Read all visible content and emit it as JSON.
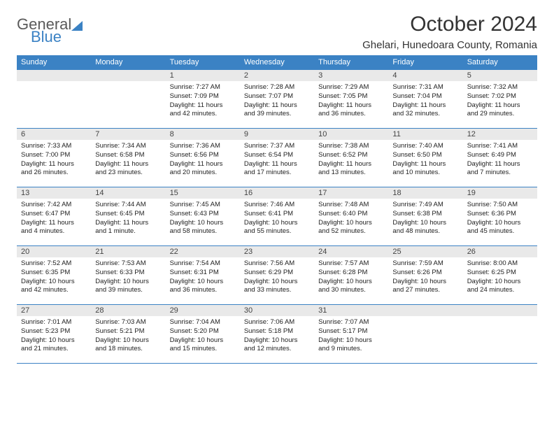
{
  "brand": {
    "part1": "General",
    "part2": "Blue"
  },
  "title": "October 2024",
  "location": "Ghelari, Hunedoara County, Romania",
  "header_bg": "#3b82c4",
  "header_fg": "#ffffff",
  "daynum_bg": "#e9e9e9",
  "border_color": "#3b82c4",
  "weekdays": [
    "Sunday",
    "Monday",
    "Tuesday",
    "Wednesday",
    "Thursday",
    "Friday",
    "Saturday"
  ],
  "weeks": [
    [
      null,
      null,
      {
        "n": "1",
        "sr": "Sunrise: 7:27 AM",
        "ss": "Sunset: 7:09 PM",
        "dl": "Daylight: 11 hours and 42 minutes."
      },
      {
        "n": "2",
        "sr": "Sunrise: 7:28 AM",
        "ss": "Sunset: 7:07 PM",
        "dl": "Daylight: 11 hours and 39 minutes."
      },
      {
        "n": "3",
        "sr": "Sunrise: 7:29 AM",
        "ss": "Sunset: 7:05 PM",
        "dl": "Daylight: 11 hours and 36 minutes."
      },
      {
        "n": "4",
        "sr": "Sunrise: 7:31 AM",
        "ss": "Sunset: 7:04 PM",
        "dl": "Daylight: 11 hours and 32 minutes."
      },
      {
        "n": "5",
        "sr": "Sunrise: 7:32 AM",
        "ss": "Sunset: 7:02 PM",
        "dl": "Daylight: 11 hours and 29 minutes."
      }
    ],
    [
      {
        "n": "6",
        "sr": "Sunrise: 7:33 AM",
        "ss": "Sunset: 7:00 PM",
        "dl": "Daylight: 11 hours and 26 minutes."
      },
      {
        "n": "7",
        "sr": "Sunrise: 7:34 AM",
        "ss": "Sunset: 6:58 PM",
        "dl": "Daylight: 11 hours and 23 minutes."
      },
      {
        "n": "8",
        "sr": "Sunrise: 7:36 AM",
        "ss": "Sunset: 6:56 PM",
        "dl": "Daylight: 11 hours and 20 minutes."
      },
      {
        "n": "9",
        "sr": "Sunrise: 7:37 AM",
        "ss": "Sunset: 6:54 PM",
        "dl": "Daylight: 11 hours and 17 minutes."
      },
      {
        "n": "10",
        "sr": "Sunrise: 7:38 AM",
        "ss": "Sunset: 6:52 PM",
        "dl": "Daylight: 11 hours and 13 minutes."
      },
      {
        "n": "11",
        "sr": "Sunrise: 7:40 AM",
        "ss": "Sunset: 6:50 PM",
        "dl": "Daylight: 11 hours and 10 minutes."
      },
      {
        "n": "12",
        "sr": "Sunrise: 7:41 AM",
        "ss": "Sunset: 6:49 PM",
        "dl": "Daylight: 11 hours and 7 minutes."
      }
    ],
    [
      {
        "n": "13",
        "sr": "Sunrise: 7:42 AM",
        "ss": "Sunset: 6:47 PM",
        "dl": "Daylight: 11 hours and 4 minutes."
      },
      {
        "n": "14",
        "sr": "Sunrise: 7:44 AM",
        "ss": "Sunset: 6:45 PM",
        "dl": "Daylight: 11 hours and 1 minute."
      },
      {
        "n": "15",
        "sr": "Sunrise: 7:45 AM",
        "ss": "Sunset: 6:43 PM",
        "dl": "Daylight: 10 hours and 58 minutes."
      },
      {
        "n": "16",
        "sr": "Sunrise: 7:46 AM",
        "ss": "Sunset: 6:41 PM",
        "dl": "Daylight: 10 hours and 55 minutes."
      },
      {
        "n": "17",
        "sr": "Sunrise: 7:48 AM",
        "ss": "Sunset: 6:40 PM",
        "dl": "Daylight: 10 hours and 52 minutes."
      },
      {
        "n": "18",
        "sr": "Sunrise: 7:49 AM",
        "ss": "Sunset: 6:38 PM",
        "dl": "Daylight: 10 hours and 48 minutes."
      },
      {
        "n": "19",
        "sr": "Sunrise: 7:50 AM",
        "ss": "Sunset: 6:36 PM",
        "dl": "Daylight: 10 hours and 45 minutes."
      }
    ],
    [
      {
        "n": "20",
        "sr": "Sunrise: 7:52 AM",
        "ss": "Sunset: 6:35 PM",
        "dl": "Daylight: 10 hours and 42 minutes."
      },
      {
        "n": "21",
        "sr": "Sunrise: 7:53 AM",
        "ss": "Sunset: 6:33 PM",
        "dl": "Daylight: 10 hours and 39 minutes."
      },
      {
        "n": "22",
        "sr": "Sunrise: 7:54 AM",
        "ss": "Sunset: 6:31 PM",
        "dl": "Daylight: 10 hours and 36 minutes."
      },
      {
        "n": "23",
        "sr": "Sunrise: 7:56 AM",
        "ss": "Sunset: 6:29 PM",
        "dl": "Daylight: 10 hours and 33 minutes."
      },
      {
        "n": "24",
        "sr": "Sunrise: 7:57 AM",
        "ss": "Sunset: 6:28 PM",
        "dl": "Daylight: 10 hours and 30 minutes."
      },
      {
        "n": "25",
        "sr": "Sunrise: 7:59 AM",
        "ss": "Sunset: 6:26 PM",
        "dl": "Daylight: 10 hours and 27 minutes."
      },
      {
        "n": "26",
        "sr": "Sunrise: 8:00 AM",
        "ss": "Sunset: 6:25 PM",
        "dl": "Daylight: 10 hours and 24 minutes."
      }
    ],
    [
      {
        "n": "27",
        "sr": "Sunrise: 7:01 AM",
        "ss": "Sunset: 5:23 PM",
        "dl": "Daylight: 10 hours and 21 minutes."
      },
      {
        "n": "28",
        "sr": "Sunrise: 7:03 AM",
        "ss": "Sunset: 5:21 PM",
        "dl": "Daylight: 10 hours and 18 minutes."
      },
      {
        "n": "29",
        "sr": "Sunrise: 7:04 AM",
        "ss": "Sunset: 5:20 PM",
        "dl": "Daylight: 10 hours and 15 minutes."
      },
      {
        "n": "30",
        "sr": "Sunrise: 7:06 AM",
        "ss": "Sunset: 5:18 PM",
        "dl": "Daylight: 10 hours and 12 minutes."
      },
      {
        "n": "31",
        "sr": "Sunrise: 7:07 AM",
        "ss": "Sunset: 5:17 PM",
        "dl": "Daylight: 10 hours and 9 minutes."
      },
      null,
      null
    ]
  ]
}
